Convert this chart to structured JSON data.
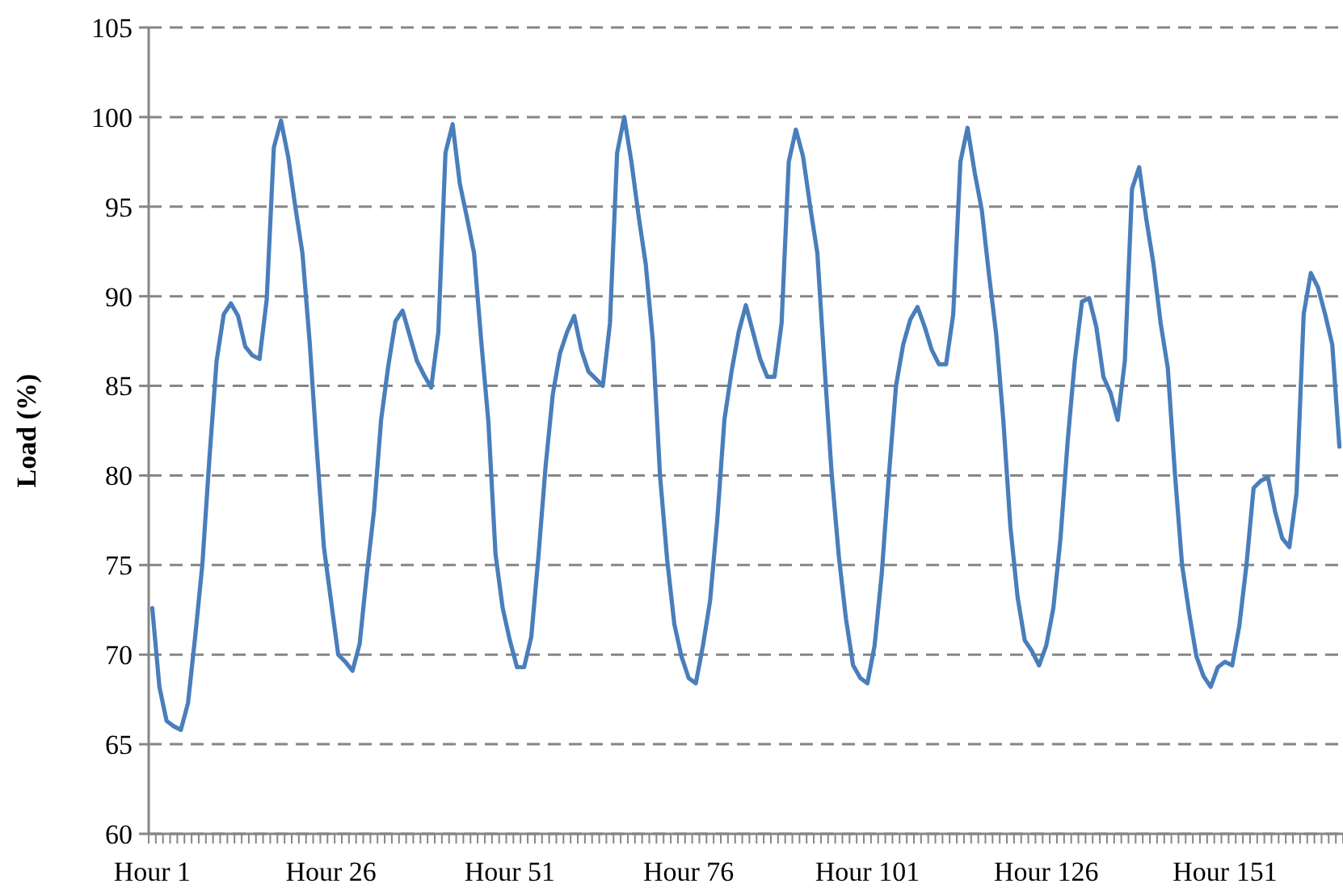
{
  "chart_data": {
    "type": "line",
    "ylabel": "Load (%)",
    "categories": [
      "Hour 1",
      null,
      null,
      null,
      null,
      null,
      null,
      null,
      null,
      null,
      null,
      null,
      null,
      null,
      null,
      null,
      null,
      null,
      null,
      null,
      null,
      null,
      null,
      null,
      null,
      "Hour 26",
      null,
      null,
      null,
      null,
      null,
      null,
      null,
      null,
      null,
      null,
      null,
      null,
      null,
      null,
      null,
      null,
      null,
      null,
      null,
      null,
      null,
      null,
      null,
      null,
      "Hour 51",
      null,
      null,
      null,
      null,
      null,
      null,
      null,
      null,
      null,
      null,
      null,
      null,
      null,
      null,
      null,
      null,
      null,
      null,
      null,
      null,
      null,
      null,
      null,
      null,
      "Hour 76",
      null,
      null,
      null,
      null,
      null,
      null,
      null,
      null,
      null,
      null,
      null,
      null,
      null,
      null,
      null,
      null,
      null,
      null,
      null,
      null,
      null,
      null,
      null,
      null,
      "Hour 101",
      null,
      null,
      null,
      null,
      null,
      null,
      null,
      null,
      null,
      null,
      null,
      null,
      null,
      null,
      null,
      null,
      null,
      null,
      null,
      null,
      null,
      null,
      null,
      null,
      "Hour 126",
      null,
      null,
      null,
      null,
      null,
      null,
      null,
      null,
      null,
      null,
      null,
      null,
      null,
      null,
      null,
      null,
      null,
      null,
      null,
      null,
      null,
      null,
      null,
      null,
      "Hour 151",
      null,
      null,
      null,
      null,
      null,
      null,
      null,
      null,
      null,
      null,
      null,
      null,
      null,
      null,
      null,
      null
    ],
    "series": [
      {
        "color": "#4a7ebb",
        "values": [
          72.6,
          68.2,
          66.3,
          66,
          65.8,
          67.3,
          71,
          75,
          81,
          86.4,
          89,
          89.6,
          88.9,
          87.2,
          86.7,
          86.5,
          89.8,
          98.3,
          99.8,
          97.8,
          95,
          92.4,
          87.5,
          81.5,
          76,
          73,
          70,
          69.6,
          69.1,
          70.6,
          74.5,
          78,
          83.1,
          86.1,
          88.6,
          89.2,
          87.8,
          86.4,
          85.6,
          84.9,
          88,
          98,
          99.6,
          96.3,
          94.4,
          92.4,
          87.5,
          83,
          75.6,
          72.6,
          70.8,
          69.3,
          69.3,
          71,
          75.5,
          80.5,
          84.5,
          86.8,
          88,
          88.9,
          87,
          85.8,
          85.4,
          85,
          88.5,
          98,
          100,
          97.5,
          94.5,
          91.8,
          87.5,
          80,
          75.3,
          71.7,
          69.9,
          68.7,
          68.4,
          70.5,
          73,
          77.5,
          83.1,
          85.8,
          88,
          89.5,
          88,
          86.5,
          85.5,
          85.5,
          88.5,
          97.5,
          99.3,
          97.8,
          95,
          92.4,
          86.1,
          80.1,
          75.5,
          72,
          69.4,
          68.7,
          68.4,
          70.5,
          74.5,
          80,
          85,
          87.3,
          88.7,
          89.4,
          88.3,
          87,
          86.2,
          86.2,
          89,
          97.5,
          99.4,
          96.9,
          94.8,
          91.2,
          87.9,
          83.1,
          77.1,
          73.2,
          70.8,
          70.2,
          69.4,
          70.5,
          72.6,
          76.5,
          81.9,
          86.4,
          89.7,
          89.9,
          88.3,
          85.5,
          84.6,
          83.1,
          86.4,
          96,
          97.2,
          94.3,
          91.8,
          88.5,
          86,
          80.1,
          75,
          72.3,
          69.9,
          68.8,
          68.2,
          69.3,
          69.6,
          69.4,
          71.6,
          75,
          79.3,
          79.7,
          79.9,
          78,
          76.5,
          76,
          79,
          89,
          91.3,
          90.5,
          89,
          87.3,
          81.6
        ]
      }
    ],
    "ylim": [
      60,
      105
    ],
    "yticks": [
      60,
      65,
      70,
      75,
      80,
      85,
      90,
      95,
      100,
      105
    ],
    "grid": "y"
  }
}
